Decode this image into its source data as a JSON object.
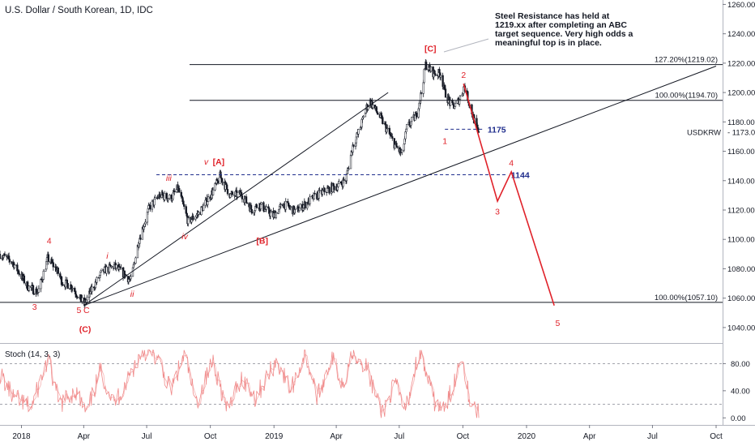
{
  "header": {
    "title": "U.S. Dollar / South Korean, 1D, IDC",
    "annotation": "Steel Resistance has held at 1219.xx after completing an ABC target sequence. Very high odds a meaningful top is in place."
  },
  "study": {
    "title": "Stoch (14, 3, 3)"
  },
  "colors": {
    "candle": "#131722",
    "wave": "#e0222a",
    "level": "#1f2d8c",
    "stoch": "#f08a8a",
    "grid": "#e6e9ef"
  },
  "chart_data": {
    "type": "candlestick",
    "symbol": "USDKRW",
    "last_price": "1173.00",
    "x_ticks": [
      "2018",
      "Apr",
      "Jul",
      "Oct",
      "2019",
      "Apr",
      "Jul",
      "Oct",
      "2020",
      "Apr",
      "Jul",
      "Oct"
    ],
    "y_ticks": [
      "1260.00",
      "1240.00",
      "1220.00",
      "1200.00",
      "1180.00",
      "1160.00",
      "1140.00",
      "1120.00",
      "1100.00",
      "1080.00",
      "1060.00",
      "1040.00"
    ],
    "ylim": [
      1030,
      1263
    ],
    "price_path": [
      [
        "2017-12-01",
        1090
      ],
      [
        "2017-12-20",
        1084
      ],
      [
        "2018-01-10",
        1068
      ],
      [
        "2018-01-25",
        1064
      ],
      [
        "2018-02-08",
        1087
      ],
      [
        "2018-02-20",
        1080
      ],
      [
        "2018-03-01",
        1071
      ],
      [
        "2018-03-15",
        1068
      ],
      [
        "2018-03-26",
        1060
      ],
      [
        "2018-04-02",
        1056
      ],
      [
        "2018-04-15",
        1068
      ],
      [
        "2018-04-28",
        1078
      ],
      [
        "2018-05-15",
        1082
      ],
      [
        "2018-05-30",
        1076
      ],
      [
        "2018-06-08",
        1072
      ],
      [
        "2018-06-20",
        1100
      ],
      [
        "2018-07-05",
        1122
      ],
      [
        "2018-07-20",
        1130
      ],
      [
        "2018-08-05",
        1128
      ],
      [
        "2018-08-15",
        1135
      ],
      [
        "2018-08-30",
        1112
      ],
      [
        "2018-09-15",
        1118
      ],
      [
        "2018-10-05",
        1133
      ],
      [
        "2018-10-15",
        1143
      ],
      [
        "2018-10-30",
        1130
      ],
      [
        "2018-11-15",
        1131
      ],
      [
        "2018-11-30",
        1120
      ],
      [
        "2018-12-10",
        1124
      ],
      [
        "2018-12-31",
        1116
      ],
      [
        "2019-01-15",
        1124
      ],
      [
        "2019-02-01",
        1119
      ],
      [
        "2019-02-15",
        1124
      ],
      [
        "2019-03-01",
        1129
      ],
      [
        "2019-03-15",
        1133
      ],
      [
        "2019-04-05",
        1137
      ],
      [
        "2019-04-15",
        1141
      ],
      [
        "2019-04-25",
        1164
      ],
      [
        "2019-05-05",
        1175
      ],
      [
        "2019-05-15",
        1190
      ],
      [
        "2019-05-20",
        1194
      ],
      [
        "2019-06-05",
        1182
      ],
      [
        "2019-06-25",
        1164
      ],
      [
        "2019-07-05",
        1158
      ],
      [
        "2019-07-12",
        1176
      ],
      [
        "2019-07-25",
        1184
      ],
      [
        "2019-08-02",
        1200
      ],
      [
        "2019-08-08",
        1219
      ],
      [
        "2019-08-20",
        1213
      ],
      [
        "2019-08-30",
        1213
      ],
      [
        "2019-09-05",
        1200
      ],
      [
        "2019-09-15",
        1190
      ],
      [
        "2019-09-22",
        1192
      ],
      [
        "2019-09-30",
        1200
      ],
      [
        "2019-10-03",
        1205
      ],
      [
        "2019-10-10",
        1193
      ],
      [
        "2019-10-18",
        1180
      ],
      [
        "2019-10-24",
        1171
      ]
    ],
    "horizontal_levels": [
      {
        "label": "127.20%(1219.02)",
        "value": 1219.02,
        "start": "2018-09-01",
        "style": "solid"
      },
      {
        "label": "100.00%(1194.70)",
        "value": 1194.7,
        "start": "2018-09-01",
        "style": "solid"
      },
      {
        "label": "100.00%(1057.10)",
        "value": 1057.1,
        "start": "2017-12-01",
        "style": "solid"
      },
      {
        "label": "1175",
        "value": 1175,
        "start": "2019-09-05",
        "end": "2019-11-01",
        "style": "dashed"
      },
      {
        "label": "1144",
        "value": 1144,
        "start": "2018-07-15",
        "end": "2019-12-05",
        "style": "dashed"
      }
    ],
    "trendlines": [
      {
        "start": [
          "2018-04-01",
          1055
        ],
        "end": [
          "2020-10-01",
          1218
        ]
      },
      {
        "start": [
          "2018-04-01",
          1055
        ],
        "end": [
          "2019-06-15",
          1200
        ]
      }
    ],
    "projection": [
      [
        "2019-10-02",
        1206
      ],
      [
        "2019-11-20",
        1126
      ],
      [
        "2019-12-10",
        1146
      ],
      [
        "2020-02-10",
        1055
      ]
    ],
    "wave_labels": [
      {
        "text": "4",
        "date": "2018-02-10",
        "price": 1097
      },
      {
        "text": "3",
        "date": "2018-01-20",
        "price": 1052
      },
      {
        "text": "5",
        "date": "2018-03-25",
        "price": 1050
      },
      {
        "text": "C",
        "date": "2018-04-05",
        "price": 1050
      },
      {
        "text": "(C)",
        "date": "2018-04-03",
        "price": 1037
      },
      {
        "text": "i",
        "date": "2018-05-05",
        "price": 1087
      },
      {
        "text": "ii",
        "date": "2018-06-10",
        "price": 1061
      },
      {
        "text": "iii",
        "date": "2018-08-02",
        "price": 1140
      },
      {
        "text": "iv",
        "date": "2018-08-25",
        "price": 1100
      },
      {
        "text": "v",
        "date": "2018-09-25",
        "price": 1151
      },
      {
        "text": "[A]",
        "date": "2018-10-13",
        "price": 1151
      },
      {
        "text": "[B]",
        "date": "2018-12-15",
        "price": 1097
      },
      {
        "text": "[C]",
        "date": "2019-08-15",
        "price": 1228
      },
      {
        "text": "1",
        "date": "2019-09-05",
        "price": 1165
      },
      {
        "text": "2",
        "date": "2019-10-02",
        "price": 1210
      },
      {
        "text": "3",
        "date": "2019-11-20",
        "price": 1117
      },
      {
        "text": "4",
        "date": "2019-12-10",
        "price": 1150
      },
      {
        "text": "5",
        "date": "2020-02-15",
        "price": 1041
      }
    ],
    "stochastic": {
      "title": "Stoch (14, 3, 3)",
      "y_ticks": [
        "80.00",
        "40.00",
        "0.00"
      ],
      "ylim": [
        -8,
        108
      ],
      "levels": [
        80,
        20
      ],
      "sample_path": [
        [
          "2017-12-01",
          65
        ],
        [
          "2017-12-20",
          30
        ],
        [
          "2018-01-15",
          15
        ],
        [
          "2018-02-08",
          85
        ],
        [
          "2018-02-25",
          20
        ],
        [
          "2018-03-20",
          40
        ],
        [
          "2018-04-05",
          5
        ],
        [
          "2018-04-25",
          70
        ],
        [
          "2018-05-15",
          20
        ],
        [
          "2018-06-05",
          60
        ],
        [
          "2018-06-25",
          100
        ],
        [
          "2018-07-15",
          90
        ],
        [
          "2018-08-05",
          40
        ],
        [
          "2018-08-25",
          95
        ],
        [
          "2018-09-10",
          20
        ],
        [
          "2018-10-05",
          85
        ],
        [
          "2018-10-25",
          10
        ],
        [
          "2018-11-15",
          60
        ],
        [
          "2018-12-05",
          30
        ],
        [
          "2019-01-05",
          85
        ],
        [
          "2019-01-25",
          40
        ],
        [
          "2019-02-15",
          95
        ],
        [
          "2019-03-05",
          30
        ],
        [
          "2019-03-25",
          90
        ],
        [
          "2019-04-10",
          50
        ],
        [
          "2019-04-25",
          100
        ],
        [
          "2019-05-15",
          75
        ],
        [
          "2019-06-05",
          5
        ],
        [
          "2019-06-25",
          50
        ],
        [
          "2019-07-10",
          10
        ],
        [
          "2019-07-30",
          100
        ],
        [
          "2019-08-20",
          25
        ],
        [
          "2019-09-05",
          10
        ],
        [
          "2019-09-20",
          60
        ],
        [
          "2019-09-30",
          95
        ],
        [
          "2019-10-10",
          30
        ],
        [
          "2019-10-24",
          5
        ]
      ]
    }
  }
}
